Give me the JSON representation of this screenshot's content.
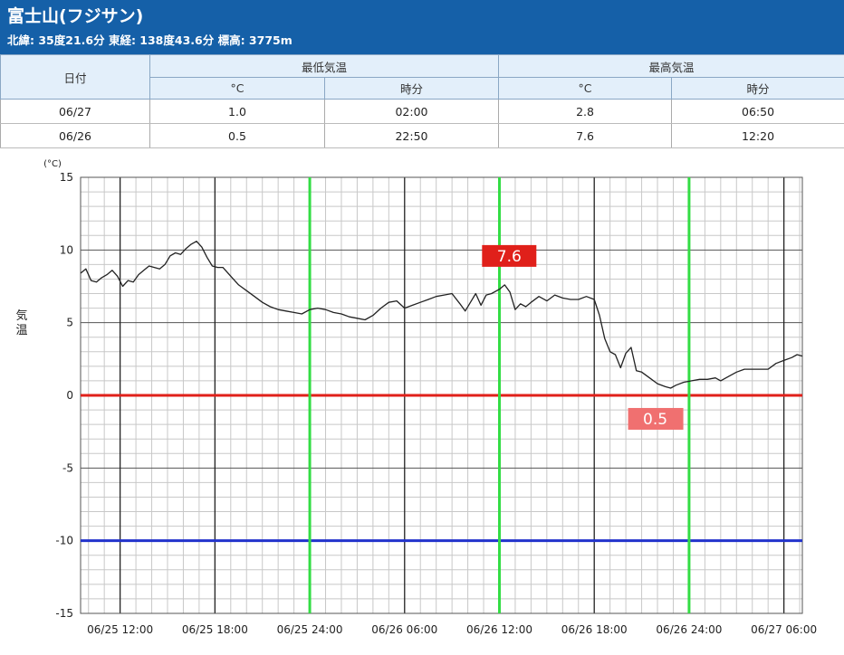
{
  "station": {
    "title": "富士山(フジサン)",
    "coords": "北緯: 35度21.6分 東経: 138度43.6分 標高: 3775m"
  },
  "table": {
    "date_header": "日付",
    "min_header": "最低気温",
    "max_header": "最高気温",
    "unit_c": "°C",
    "unit_time": "時分",
    "rows": [
      {
        "date": "06/27",
        "min": "1.0",
        "min_time": "02:00",
        "max": "2.8",
        "max_time": "06:50"
      },
      {
        "date": "06/26",
        "min": "0.5",
        "min_time": "22:50",
        "max": "7.6",
        "max_time": "12:20"
      }
    ]
  },
  "chart_data": {
    "type": "line",
    "ylabel": "気温",
    "yunit": "(°C)",
    "ylim": [
      -15,
      15
    ],
    "yticks": [
      15,
      10,
      5,
      0,
      -5,
      -10,
      -15
    ],
    "xlim": [
      "06/25 09:30",
      "06/27 07:10"
    ],
    "xticks": [
      "06/25 12:00",
      "06/25 18:00",
      "06/25 24:00",
      "06/26 06:00",
      "06/26 12:00",
      "06/26 18:00",
      "06/26 24:00",
      "06/27 06:00"
    ],
    "grid": true,
    "reference_lines": [
      {
        "y": 0,
        "color": "#e0201a"
      },
      {
        "y": -10,
        "color": "#2233cc"
      }
    ],
    "day_boundary_markers": [
      "06/25 24:00",
      "06/26 12:00",
      "06/26 24:00"
    ],
    "annotations": [
      {
        "label": "7.6",
        "x": "06/26 12:20",
        "y": 7.6,
        "color": "#e0201a"
      },
      {
        "label": "0.5",
        "x": "06/26 22:50",
        "y": 0.5,
        "color": "#f07070"
      }
    ],
    "series": [
      {
        "color": "#222222",
        "points": [
          [
            "06/25 09:30",
            8.4
          ],
          [
            "06/25 09:50",
            8.7
          ],
          [
            "06/25 10:10",
            7.9
          ],
          [
            "06/25 10:30",
            7.8
          ],
          [
            "06/25 10:50",
            8.1
          ],
          [
            "06/25 11:10",
            8.3
          ],
          [
            "06/25 11:30",
            8.6
          ],
          [
            "06/25 11:50",
            8.2
          ],
          [
            "06/25 12:10",
            7.5
          ],
          [
            "06/25 12:30",
            7.9
          ],
          [
            "06/25 12:50",
            7.8
          ],
          [
            "06/25 13:10",
            8.3
          ],
          [
            "06/25 13:30",
            8.6
          ],
          [
            "06/25 13:50",
            8.9
          ],
          [
            "06/25 14:10",
            8.8
          ],
          [
            "06/25 14:30",
            8.7
          ],
          [
            "06/25 14:50",
            9.0
          ],
          [
            "06/25 15:10",
            9.6
          ],
          [
            "06/25 15:30",
            9.8
          ],
          [
            "06/25 15:50",
            9.7
          ],
          [
            "06/25 16:10",
            10.1
          ],
          [
            "06/25 16:30",
            10.4
          ],
          [
            "06/25 16:50",
            10.6
          ],
          [
            "06/25 17:10",
            10.2
          ],
          [
            "06/25 17:30",
            9.5
          ],
          [
            "06/25 17:50",
            8.9
          ],
          [
            "06/25 18:10",
            8.8
          ],
          [
            "06/25 18:30",
            8.8
          ],
          [
            "06/25 19:00",
            8.2
          ],
          [
            "06/25 19:30",
            7.6
          ],
          [
            "06/25 20:00",
            7.2
          ],
          [
            "06/25 20:30",
            6.8
          ],
          [
            "06/25 21:00",
            6.4
          ],
          [
            "06/25 21:30",
            6.1
          ],
          [
            "06/25 22:00",
            5.9
          ],
          [
            "06/25 22:30",
            5.8
          ],
          [
            "06/25 23:00",
            5.7
          ],
          [
            "06/25 23:30",
            5.6
          ],
          [
            "06/25 24:00",
            5.9
          ],
          [
            "06/26 00:30",
            6.0
          ],
          [
            "06/26 01:00",
            5.9
          ],
          [
            "06/26 01:30",
            5.7
          ],
          [
            "06/26 02:00",
            5.6
          ],
          [
            "06/26 02:30",
            5.4
          ],
          [
            "06/26 03:00",
            5.3
          ],
          [
            "06/26 03:30",
            5.2
          ],
          [
            "06/26 04:00",
            5.5
          ],
          [
            "06/26 04:30",
            6.0
          ],
          [
            "06/26 05:00",
            6.4
          ],
          [
            "06/26 05:30",
            6.5
          ],
          [
            "06/26 06:00",
            6.0
          ],
          [
            "06/26 06:30",
            6.2
          ],
          [
            "06/26 07:00",
            6.4
          ],
          [
            "06/26 07:30",
            6.6
          ],
          [
            "06/26 08:00",
            6.8
          ],
          [
            "06/26 08:30",
            6.9
          ],
          [
            "06/26 09:00",
            7.0
          ],
          [
            "06/26 09:30",
            6.3
          ],
          [
            "06/26 09:50",
            5.8
          ],
          [
            "06/26 10:10",
            6.4
          ],
          [
            "06/26 10:30",
            7.0
          ],
          [
            "06/26 10:50",
            6.2
          ],
          [
            "06/26 11:10",
            6.9
          ],
          [
            "06/26 11:30",
            7.0
          ],
          [
            "06/26 12:00",
            7.3
          ],
          [
            "06/26 12:20",
            7.6
          ],
          [
            "06/26 12:40",
            7.1
          ],
          [
            "06/26 13:00",
            5.9
          ],
          [
            "06/26 13:20",
            6.3
          ],
          [
            "06/26 13:40",
            6.1
          ],
          [
            "06/26 14:00",
            6.4
          ],
          [
            "06/26 14:30",
            6.8
          ],
          [
            "06/26 15:00",
            6.5
          ],
          [
            "06/26 15:30",
            6.9
          ],
          [
            "06/26 16:00",
            6.7
          ],
          [
            "06/26 16:30",
            6.6
          ],
          [
            "06/26 17:00",
            6.6
          ],
          [
            "06/26 17:30",
            6.8
          ],
          [
            "06/26 18:00",
            6.6
          ],
          [
            "06/26 18:20",
            5.5
          ],
          [
            "06/26 18:40",
            3.9
          ],
          [
            "06/26 19:00",
            3.0
          ],
          [
            "06/26 19:20",
            2.8
          ],
          [
            "06/26 19:40",
            1.9
          ],
          [
            "06/26 20:00",
            2.9
          ],
          [
            "06/26 20:20",
            3.3
          ],
          [
            "06/26 20:40",
            1.7
          ],
          [
            "06/26 21:00",
            1.6
          ],
          [
            "06/26 21:30",
            1.2
          ],
          [
            "06/26 22:00",
            0.8
          ],
          [
            "06/26 22:30",
            0.6
          ],
          [
            "06/26 22:50",
            0.5
          ],
          [
            "06/26 23:10",
            0.7
          ],
          [
            "06/26 23:40",
            0.9
          ],
          [
            "06/27 00:10",
            1.0
          ],
          [
            "06/27 00:40",
            1.1
          ],
          [
            "06/27 01:10",
            1.1
          ],
          [
            "06/27 01:40",
            1.2
          ],
          [
            "06/27 02:00",
            1.0
          ],
          [
            "06/27 02:30",
            1.3
          ],
          [
            "06/27 03:00",
            1.6
          ],
          [
            "06/27 03:30",
            1.8
          ],
          [
            "06/27 04:00",
            1.8
          ],
          [
            "06/27 04:30",
            1.8
          ],
          [
            "06/27 05:00",
            1.8
          ],
          [
            "06/27 05:30",
            2.2
          ],
          [
            "06/27 06:00",
            2.4
          ],
          [
            "06/27 06:30",
            2.6
          ],
          [
            "06/27 06:50",
            2.8
          ],
          [
            "06/27 07:10",
            2.7
          ]
        ]
      }
    ]
  }
}
